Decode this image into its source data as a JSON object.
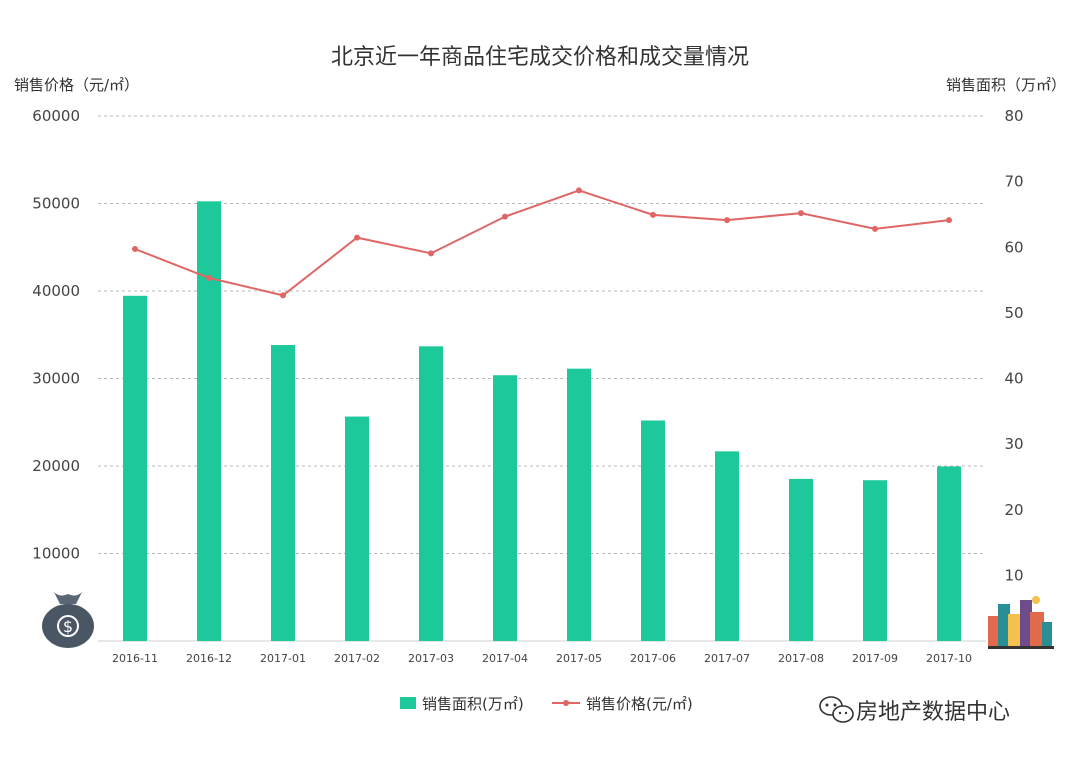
{
  "chart_data": {
    "type": "bar+line",
    "title": "北京近一年商品住宅成交价格和成交量情况",
    "left_axis_label": "销售价格（元/㎡）",
    "right_axis_label": "销售面积（万㎡）",
    "categories": [
      "2016-11",
      "2016-12",
      "2017-01",
      "2017-02",
      "2017-03",
      "2017-04",
      "2017-05",
      "2017-06",
      "2017-07",
      "2017-08",
      "2017-09",
      "2017-10"
    ],
    "left_ticks": [
      "60000",
      "50000",
      "40000",
      "30000",
      "20000",
      "10000"
    ],
    "right_ticks": [
      "80",
      "70",
      "60",
      "50",
      "40",
      "30",
      "20",
      "10"
    ],
    "y_left_lim": [
      0,
      60000
    ],
    "y_right_lim": [
      0,
      80
    ],
    "series": [
      {
        "name": "销售面积(万㎡)",
        "type": "bar",
        "axis": "right",
        "color": "#1dc99a",
        "values": [
          52.6,
          67.0,
          45.1,
          34.2,
          44.9,
          40.5,
          41.5,
          33.6,
          28.9,
          24.7,
          24.5,
          26.6
        ]
      },
      {
        "name": "销售价格(元/㎡)",
        "type": "line",
        "axis": "left",
        "color": "#e06666",
        "values": [
          44800,
          41500,
          39500,
          46100,
          44300,
          48500,
          51500,
          48700,
          48100,
          48900,
          47100,
          48100
        ]
      }
    ],
    "grid": true,
    "legend_position": "bottom"
  },
  "watermark": {
    "brand_text": "房地产数据中心"
  },
  "icons": {
    "left": "money-bag-icon",
    "right": "city-buildings-icon",
    "brand": "wechat-icon"
  }
}
